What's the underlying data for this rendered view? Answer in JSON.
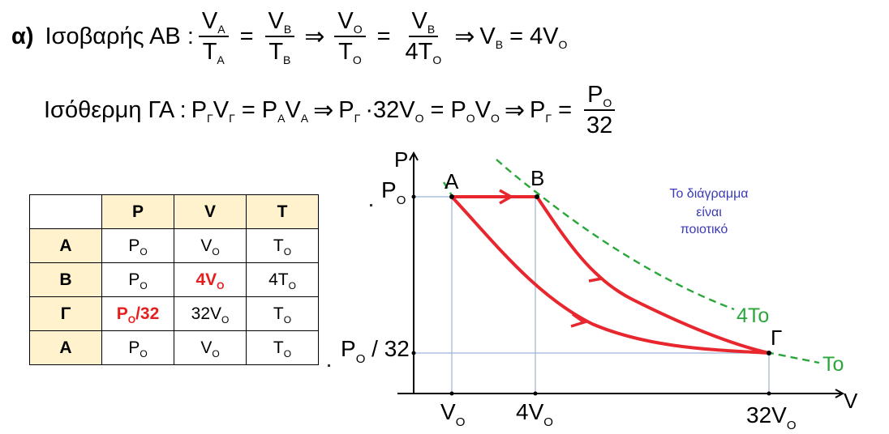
{
  "equations": {
    "line1": {
      "label": "α)",
      "name": "Ισοβαρής ΑΒ :",
      "f1_num": "V",
      "f1_num_sub": "A",
      "f1_den": "T",
      "f1_den_sub": "A",
      "f2_num": "V",
      "f2_num_sub": "B",
      "f2_den": "T",
      "f2_den_sub": "B",
      "f3_num": "V",
      "f3_num_sub": "O",
      "f3_den": "T",
      "f3_den_sub": "O",
      "f4_num": "V",
      "f4_num_sub": "B",
      "f4_den": "4T",
      "f4_den_sub": "O",
      "res_lhs": "V",
      "res_lhs_sub": "B",
      "res_rhs": "4V",
      "res_rhs_sub": "O"
    },
    "line2": {
      "name": "Ισόθερμη ΓΑ :",
      "a1": "P",
      "a1_sub": "Γ",
      "a2": "V",
      "a2_sub": "Γ",
      "b1": "P",
      "b1_sub": "A",
      "b2": "V",
      "b2_sub": "A",
      "c1": "P",
      "c1_sub": "Γ",
      "c2": "·32V",
      "c2_sub": "O",
      "d1": "P",
      "d1_sub": "O",
      "d2": "V",
      "d2_sub": "O",
      "e1": "P",
      "e1_sub": "Γ",
      "frac_num": "P",
      "frac_num_sub": "O",
      "frac_den": "32"
    }
  },
  "table": {
    "headers": [
      "P",
      "V",
      "T"
    ],
    "rows": [
      {
        "label": "A",
        "p": "P",
        "p_sub": "O",
        "v": "V",
        "v_sub": "O",
        "t": "T",
        "t_sub": "O"
      },
      {
        "label": "B",
        "p": "P",
        "p_sub": "O",
        "v": "4V",
        "v_sub": "O",
        "t": "4T",
        "t_sub": "O"
      },
      {
        "label": "Γ",
        "p": "P",
        "p_sub": "O",
        "p_suffix": "/32",
        "v": "32V",
        "v_sub": "O",
        "t": "T",
        "t_sub": "O"
      },
      {
        "label": "A",
        "p": "P",
        "p_sub": "O",
        "v": "V",
        "v_sub": "O",
        "t": "T",
        "t_sub": "O"
      }
    ]
  },
  "graph": {
    "axis_y": "P",
    "axis_x": "V",
    "points": {
      "A": "A",
      "B": "B",
      "G": "Γ"
    },
    "y_tick_top": "P",
    "y_tick_top_sub": "O",
    "y_tick_bottom": "P",
    "y_tick_bottom_sub": "O",
    "y_tick_bottom_suffix": " / 32",
    "x_tick_1": "V",
    "x_tick_1_sub": "O",
    "x_tick_2": "4V",
    "x_tick_2_sub": "O",
    "x_tick_3": "32V",
    "x_tick_3_sub": "O",
    "isotherm_4T": "4To",
    "isotherm_T": "To",
    "note_line1": "Το διάγραμμα",
    "note_line2": "είναι",
    "note_line3": "ποιοτικό",
    "colors": {
      "process": "#e8262d",
      "isotherm": "#2aa63a",
      "guide": "#9bb5d6",
      "note": "#3a3ab8"
    }
  }
}
